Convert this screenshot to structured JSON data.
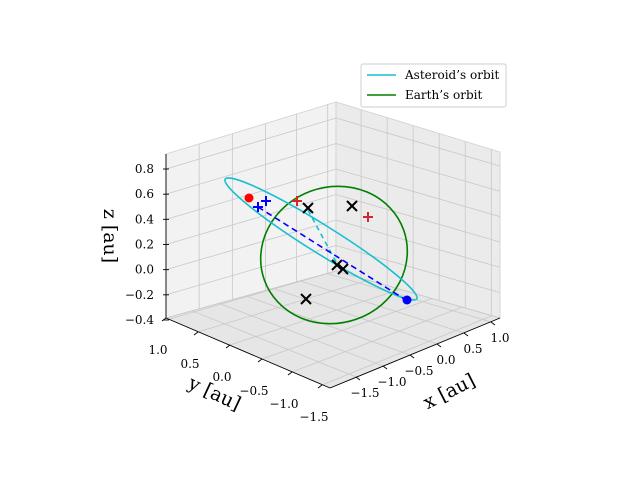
{
  "chart_data": {
    "type": "line3d",
    "title": "",
    "xlabel": "x [au]",
    "ylabel": "y [au]",
    "zlabel": "z [au]",
    "x_ticks": [
      "−1.5",
      "−1.0",
      "−0.5",
      "0.0",
      "0.5",
      "1.0"
    ],
    "y_ticks": [
      "1.0",
      "0.5",
      "0.0",
      "−0.5",
      "−1.0",
      "−1.5"
    ],
    "z_ticks": [
      "0.8",
      "0.6",
      "0.4",
      "0.2",
      "0.0",
      "−0.2",
      "−0.4"
    ],
    "xlim": [
      -1.5,
      1.1
    ],
    "ylim": [
      -1.6,
      1.1
    ],
    "zlim": [
      -0.4,
      0.85
    ],
    "grid": true,
    "legend_position": "upper-right",
    "series": [
      {
        "name": "Asteroid’s orbit",
        "color": "#17becf",
        "style": "solid"
      },
      {
        "name": "Earth’s orbit",
        "color": "#008000",
        "style": "solid"
      }
    ],
    "markers": {
      "x_marks_color": "#000000",
      "red_plus_color": "#d62728",
      "blue_plus_color": "#0000ff",
      "red_dot_color": "#ff0000",
      "blue_dot_color": "#0000ff"
    }
  }
}
